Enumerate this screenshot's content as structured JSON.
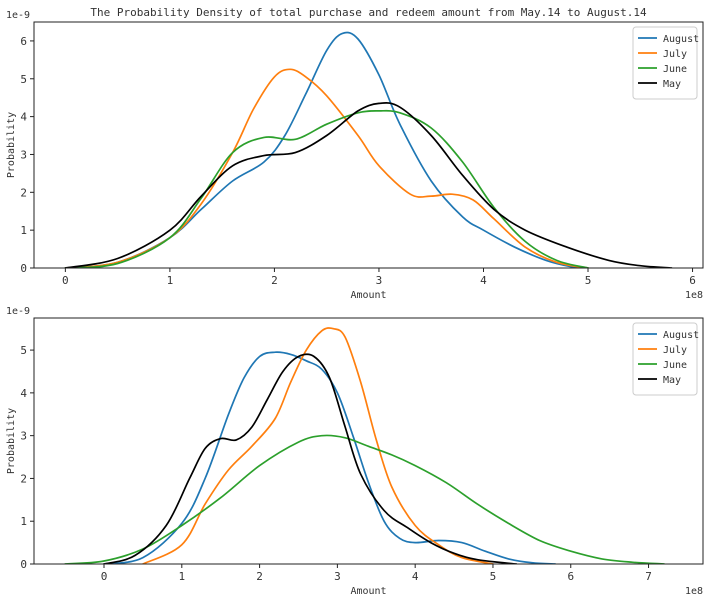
{
  "chart_data": [
    {
      "type": "line",
      "title": "The Probability Density of total purchase and redeem amount from May.14 to August.14",
      "xlabel": "Amount",
      "ylabel": "Probability",
      "x_offset_label": "1e8",
      "y_offset_label": "1e-9",
      "xlim": [
        -0.3,
        6.1
      ],
      "ylim": [
        0,
        6.5
      ],
      "xticks": [
        0,
        1,
        2,
        3,
        4,
        5,
        6
      ],
      "yticks": [
        0,
        1,
        2,
        3,
        4,
        5,
        6
      ],
      "legend": "top-right",
      "series": [
        {
          "name": "August",
          "color": "#1f77b4",
          "x": [
            0.0,
            0.5,
            1.0,
            1.3,
            1.6,
            1.9,
            2.1,
            2.3,
            2.5,
            2.65,
            2.8,
            3.0,
            3.2,
            3.5,
            3.8,
            4.0,
            4.3,
            4.6,
            4.85,
            5.0
          ],
          "y": [
            0.0,
            0.15,
            0.8,
            1.55,
            2.3,
            2.8,
            3.5,
            4.6,
            5.75,
            6.2,
            6.05,
            5.1,
            3.8,
            2.3,
            1.35,
            1.0,
            0.55,
            0.2,
            0.03,
            0.0
          ]
        },
        {
          "name": "July",
          "color": "#ff7f0e",
          "x": [
            0.0,
            0.5,
            1.0,
            1.3,
            1.6,
            1.8,
            2.0,
            2.15,
            2.3,
            2.5,
            2.8,
            3.0,
            3.3,
            3.5,
            3.7,
            3.9,
            4.1,
            4.4,
            4.7,
            5.0
          ],
          "y": [
            0.0,
            0.15,
            0.8,
            1.7,
            3.05,
            4.2,
            5.05,
            5.25,
            5.05,
            4.55,
            3.5,
            2.7,
            1.95,
            1.9,
            1.95,
            1.8,
            1.3,
            0.55,
            0.15,
            0.0
          ]
        },
        {
          "name": "June",
          "color": "#2ca02c",
          "x": [
            0.0,
            0.5,
            1.0,
            1.3,
            1.6,
            1.9,
            2.2,
            2.5,
            2.8,
            3.0,
            3.2,
            3.5,
            3.8,
            4.1,
            4.4,
            4.7,
            5.0
          ],
          "y": [
            0.0,
            0.12,
            0.8,
            1.85,
            3.05,
            3.45,
            3.4,
            3.8,
            4.1,
            4.15,
            4.1,
            3.7,
            2.8,
            1.6,
            0.7,
            0.2,
            0.0
          ]
        },
        {
          "name": "May",
          "color": "#000000",
          "x": [
            0.0,
            0.5,
            1.0,
            1.3,
            1.6,
            1.9,
            2.2,
            2.5,
            2.8,
            3.0,
            3.2,
            3.5,
            3.8,
            4.1,
            4.4,
            4.8,
            5.2,
            5.5,
            5.8
          ],
          "y": [
            0.0,
            0.25,
            1.0,
            1.9,
            2.7,
            2.97,
            3.05,
            3.5,
            4.15,
            4.35,
            4.25,
            3.5,
            2.45,
            1.55,
            1.0,
            0.55,
            0.2,
            0.06,
            0.0
          ]
        }
      ]
    },
    {
      "type": "line",
      "title": "",
      "xlabel": "Amount",
      "ylabel": "Probability",
      "x_offset_label": "1e8",
      "y_offset_label": "1e-9",
      "xlim": [
        -0.9,
        7.7
      ],
      "ylim": [
        0,
        5.75
      ],
      "xticks": [
        0,
        1,
        2,
        3,
        4,
        5,
        6,
        7
      ],
      "yticks": [
        0,
        1,
        2,
        3,
        4,
        5
      ],
      "legend": "top-right",
      "series": [
        {
          "name": "August",
          "color": "#1f77b4",
          "x": [
            0.0,
            0.5,
            1.0,
            1.3,
            1.6,
            1.8,
            2.0,
            2.2,
            2.4,
            2.6,
            2.8,
            3.0,
            3.2,
            3.4,
            3.6,
            3.8,
            4.0,
            4.3,
            4.6,
            4.9,
            5.2,
            5.5,
            5.8
          ],
          "y": [
            0.0,
            0.15,
            0.95,
            2.0,
            3.5,
            4.35,
            4.85,
            4.95,
            4.9,
            4.75,
            4.55,
            4.0,
            3.0,
            1.9,
            1.0,
            0.6,
            0.5,
            0.55,
            0.5,
            0.3,
            0.12,
            0.03,
            0.0
          ]
        },
        {
          "name": "July",
          "color": "#ff7f0e",
          "x": [
            0.5,
            1.0,
            1.3,
            1.6,
            1.9,
            2.2,
            2.4,
            2.6,
            2.8,
            2.95,
            3.1,
            3.3,
            3.5,
            3.7,
            4.0,
            4.3,
            4.6,
            5.0
          ],
          "y": [
            0.0,
            0.45,
            1.4,
            2.2,
            2.75,
            3.4,
            4.25,
            5.0,
            5.45,
            5.5,
            5.3,
            4.25,
            2.9,
            1.8,
            0.9,
            0.45,
            0.15,
            0.0
          ]
        },
        {
          "name": "June",
          "color": "#2ca02c",
          "x": [
            -0.5,
            0.0,
            0.5,
            1.0,
            1.5,
            2.0,
            2.5,
            2.8,
            3.1,
            3.4,
            3.7,
            4.0,
            4.4,
            4.8,
            5.2,
            5.6,
            6.0,
            6.4,
            6.8,
            7.2
          ],
          "y": [
            0.0,
            0.07,
            0.35,
            0.9,
            1.55,
            2.3,
            2.85,
            3.0,
            2.95,
            2.75,
            2.55,
            2.3,
            1.9,
            1.4,
            0.95,
            0.55,
            0.3,
            0.12,
            0.04,
            0.0
          ]
        },
        {
          "name": "May",
          "color": "#000000",
          "x": [
            0.0,
            0.4,
            0.8,
            1.1,
            1.3,
            1.5,
            1.7,
            1.9,
            2.1,
            2.3,
            2.5,
            2.7,
            2.9,
            3.1,
            3.3,
            3.6,
            3.9,
            4.2,
            4.5,
            4.8,
            5.3
          ],
          "y": [
            0.0,
            0.2,
            0.9,
            2.0,
            2.7,
            2.93,
            2.9,
            3.2,
            3.85,
            4.5,
            4.85,
            4.85,
            4.35,
            3.2,
            2.1,
            1.25,
            0.85,
            0.5,
            0.25,
            0.1,
            0.0
          ]
        }
      ]
    }
  ]
}
